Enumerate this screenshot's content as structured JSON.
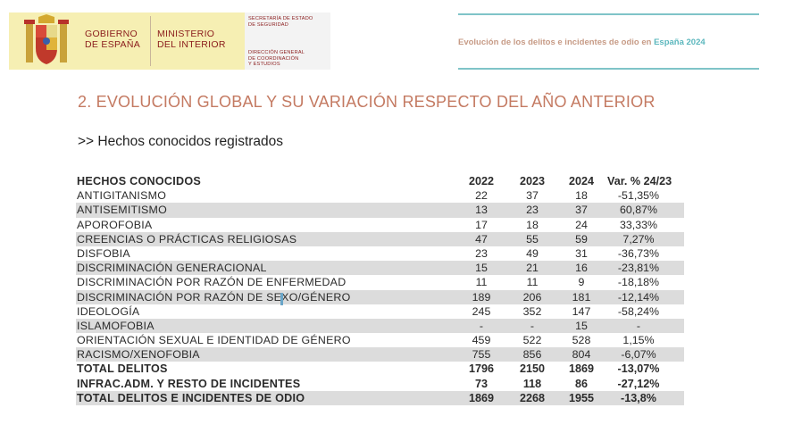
{
  "header": {
    "gobierno": [
      "GOBIERNO",
      "DE ESPAÑA"
    ],
    "ministerio": [
      "MINISTERIO",
      "DEL INTERIOR"
    ],
    "secretaria": [
      "SECRETARÍA DE ESTADO",
      "DE SEGURIDAD"
    ],
    "direccion": [
      "DIRECCIÓN GENERAL",
      "DE COORDINACIÓN",
      "Y ESTUDIOS"
    ],
    "report_title_prefix": "Evolución de los delitos e incidentes de odio en ",
    "report_title_highlight": "España 2024",
    "colors": {
      "brand_yellow": "#f6efb3",
      "brand_red": "#8a1b1b",
      "accent_teal": "#7fc4c8",
      "accent_salmon": "#c47a62"
    }
  },
  "section_title": "2. EVOLUCIÓN GLOBAL Y SU VARIACIÓN RESPECTO DEL AÑO ANTERIOR",
  "subtitle": ">> Hechos conocidos registrados",
  "table": {
    "headers": {
      "label": "HECHOS CONOCIDOS",
      "y2022": "2022",
      "y2023": "2023",
      "y2024": "2024",
      "var": "Var. % 24/23"
    },
    "rows": [
      {
        "label": "ANTIGITANISMO",
        "y2022": "22",
        "y2023": "37",
        "y2024": "18",
        "var": "-51,35%"
      },
      {
        "label": "ANTISEMITISMO",
        "y2022": "13",
        "y2023": "23",
        "y2024": "37",
        "var": "60,87%"
      },
      {
        "label": "APOROFOBIA",
        "y2022": "17",
        "y2023": "18",
        "y2024": "24",
        "var": "33,33%"
      },
      {
        "label": "CREENCIAS O PRÁCTICAS RELIGIOSAS",
        "y2022": "47",
        "y2023": "55",
        "y2024": "59",
        "var": "7,27%"
      },
      {
        "label": "DISFOBIA",
        "y2022": "23",
        "y2023": "49",
        "y2024": "31",
        "var": "-36,73%"
      },
      {
        "label": "DISCRIMINACIÓN GENERACIONAL",
        "y2022": "15",
        "y2023": "21",
        "y2024": "16",
        "var": "-23,81%"
      },
      {
        "label": "DISCRIMINACIÓN POR RAZÓN DE ENFERMEDAD",
        "y2022": "11",
        "y2023": "11",
        "y2024": "9",
        "var": "-18,18%"
      },
      {
        "label": "DISCRIMINACIÓN POR RAZÓN DE SEXO/GÉNERO",
        "y2022": "189",
        "y2023": "206",
        "y2024": "181",
        "var": "-12,14%"
      },
      {
        "label": "IDEOLOGÍA",
        "y2022": "245",
        "y2023": "352",
        "y2024": "147",
        "var": "-58,24%"
      },
      {
        "label": "ISLAMOFOBIA",
        "y2022": "-",
        "y2023": "-",
        "y2024": "15",
        "var": "-"
      },
      {
        "label": "ORIENTACIÓN SEXUAL E IDENTIDAD DE GÉNERO",
        "y2022": "459",
        "y2023": "522",
        "y2024": "528",
        "var": "1,15%"
      },
      {
        "label": "RACISMO/XENOFOBIA",
        "y2022": "755",
        "y2023": "856",
        "y2024": "804",
        "var": "-6,07%"
      }
    ],
    "totals": [
      {
        "label": "TOTAL DELITOS",
        "y2022": "1796",
        "y2023": "2150",
        "y2024": "1869",
        "var": "-13,07%"
      },
      {
        "label": "INFRAC.ADM. Y RESTO DE INCIDENTES",
        "y2022": "73",
        "y2023": "118",
        "y2024": "86",
        "var": "-27,12%"
      },
      {
        "label": "TOTAL DELITOS E INCIDENTES DE ODIO",
        "y2022": "1869",
        "y2023": "2268",
        "y2024": "1955",
        "var": "-13,8%"
      }
    ]
  }
}
